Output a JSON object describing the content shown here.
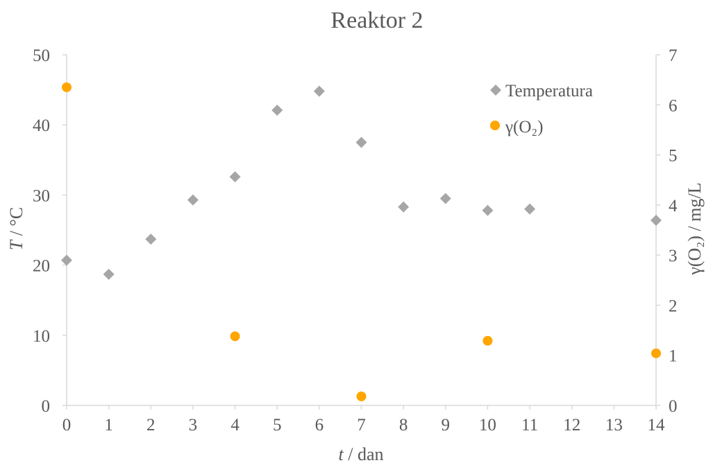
{
  "chart_data": {
    "type": "scatter",
    "title": "Reaktor 2",
    "xlabel_var": "t",
    "xlabel_unit": " / dan",
    "ylabel_var": "T",
    "ylabel_unit": " / °C",
    "y2label": "γ(O₂) / mg/L",
    "xlim": [
      0,
      14
    ],
    "ylim": [
      0,
      50
    ],
    "y2lim": [
      0,
      7
    ],
    "x_ticks": [
      0,
      1,
      2,
      3,
      4,
      5,
      6,
      7,
      8,
      9,
      10,
      11,
      12,
      13,
      14
    ],
    "y_ticks": [
      0,
      10,
      20,
      30,
      40,
      50
    ],
    "y2_ticks": [
      0,
      1,
      2,
      3,
      4,
      5,
      6,
      7
    ],
    "grid": false,
    "legend_position": "top-right",
    "series": [
      {
        "name": "Temperatura",
        "axis": "left",
        "marker": "diamond",
        "color": "#A6A6A6",
        "x": [
          0,
          1,
          2,
          3,
          4,
          5,
          6,
          7,
          8,
          9,
          10,
          11,
          14
        ],
        "y": [
          20.7,
          18.7,
          23.7,
          29.3,
          32.6,
          42.1,
          44.8,
          37.5,
          28.3,
          29.5,
          27.8,
          28.0,
          26.4
        ]
      },
      {
        "name": "γ(O₂)",
        "axis": "right",
        "marker": "circle",
        "color": "#FFA500",
        "x": [
          0,
          4,
          7,
          10,
          14
        ],
        "y": [
          6.35,
          1.38,
          0.18,
          1.29,
          1.04
        ]
      }
    ]
  },
  "colors": {
    "axis": "#D9D9D9",
    "text": "#595959"
  }
}
